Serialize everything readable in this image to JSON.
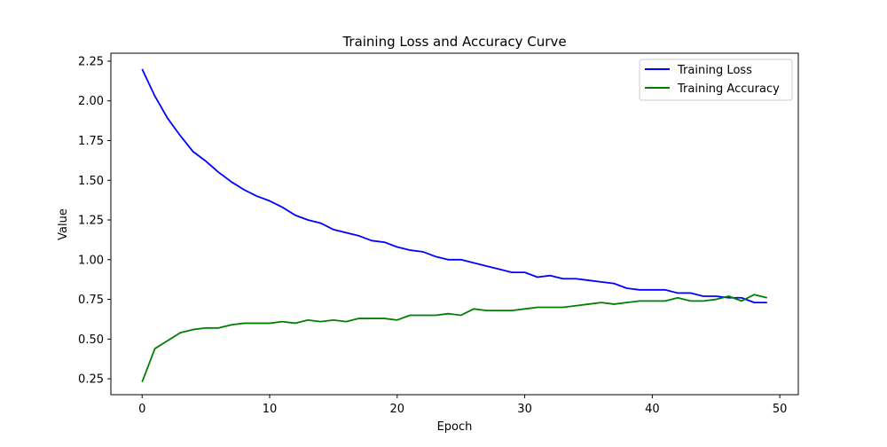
{
  "chart_data": {
    "type": "line",
    "title": "Training Loss and Accuracy Curve",
    "xlabel": "Epoch",
    "ylabel": "Value",
    "xlim": [
      -2.45,
      51.45
    ],
    "ylim": [
      0.15,
      2.3
    ],
    "xticks": [
      0,
      10,
      20,
      30,
      40,
      50
    ],
    "xtick_labels": [
      "0",
      "10",
      "20",
      "30",
      "40",
      "50"
    ],
    "yticks": [
      0.25,
      0.5,
      0.75,
      1.0,
      1.25,
      1.5,
      1.75,
      2.0,
      2.25
    ],
    "ytick_labels": [
      "0.25",
      "0.50",
      "0.75",
      "1.00",
      "1.25",
      "1.50",
      "1.75",
      "2.00",
      "2.25"
    ],
    "grid": false,
    "legend_position": "upper right",
    "x": [
      0,
      1,
      2,
      3,
      4,
      5,
      6,
      7,
      8,
      9,
      10,
      11,
      12,
      13,
      14,
      15,
      16,
      17,
      18,
      19,
      20,
      21,
      22,
      23,
      24,
      25,
      26,
      27,
      28,
      29,
      30,
      31,
      32,
      33,
      34,
      35,
      36,
      37,
      38,
      39,
      40,
      41,
      42,
      43,
      44,
      45,
      46,
      47,
      48,
      49
    ],
    "series": [
      {
        "name": "Training Loss",
        "color": "#0000ff",
        "values": [
          2.2,
          2.03,
          1.89,
          1.78,
          1.68,
          1.62,
          1.55,
          1.49,
          1.44,
          1.4,
          1.37,
          1.33,
          1.28,
          1.25,
          1.23,
          1.19,
          1.17,
          1.15,
          1.12,
          1.11,
          1.08,
          1.06,
          1.05,
          1.02,
          1.0,
          1.0,
          0.98,
          0.96,
          0.94,
          0.92,
          0.92,
          0.89,
          0.9,
          0.88,
          0.88,
          0.87,
          0.86,
          0.85,
          0.82,
          0.81,
          0.81,
          0.81,
          0.79,
          0.79,
          0.77,
          0.77,
          0.76,
          0.76,
          0.73,
          0.73
        ]
      },
      {
        "name": "Training Accuracy",
        "color": "#008000",
        "values": [
          0.23,
          0.44,
          0.49,
          0.54,
          0.56,
          0.57,
          0.57,
          0.59,
          0.6,
          0.6,
          0.6,
          0.61,
          0.6,
          0.62,
          0.61,
          0.62,
          0.61,
          0.63,
          0.63,
          0.63,
          0.62,
          0.65,
          0.65,
          0.65,
          0.66,
          0.65,
          0.69,
          0.68,
          0.68,
          0.68,
          0.69,
          0.7,
          0.7,
          0.7,
          0.71,
          0.72,
          0.73,
          0.72,
          0.73,
          0.74,
          0.74,
          0.74,
          0.76,
          0.74,
          0.74,
          0.75,
          0.77,
          0.74,
          0.78,
          0.76
        ]
      }
    ]
  }
}
